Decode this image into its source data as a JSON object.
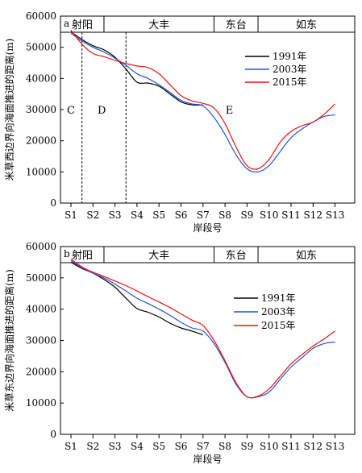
{
  "chart_data": [
    {
      "type": "line",
      "panel_label": "a",
      "ylabel": "米草西边界向海面推进的距离(m)",
      "xlabel": "岸段号",
      "ylim": [
        0,
        60000
      ],
      "yticks": [
        0,
        10000,
        20000,
        30000,
        40000,
        50000,
        60000
      ],
      "categories": [
        "S1",
        "S2",
        "S3",
        "S4",
        "S5",
        "S6",
        "S7",
        "S8",
        "S9",
        "S10",
        "S11",
        "S12",
        "S13"
      ],
      "regions": [
        {
          "label": "射阳",
          "from": 0,
          "to": 1.5
        },
        {
          "label": "大丰",
          "from": 1.5,
          "to": 6.5
        },
        {
          "label": "东台",
          "from": 6.5,
          "to": 8.5
        },
        {
          "label": "如东",
          "from": 8.5,
          "to": 12.5
        }
      ],
      "zone_dividers": [
        0.5,
        2.5
      ],
      "zone_labels": [
        {
          "label": "C",
          "x": 0,
          "y": 30000
        },
        {
          "label": "D",
          "x": 1.4,
          "y": 30000
        },
        {
          "label": "E",
          "x": 7.2,
          "y": 30000
        }
      ],
      "legend": {
        "position": "top-right"
      },
      "series": [
        {
          "name": "1991年",
          "color": "#000000",
          "x": [
            0,
            0.5,
            1,
            1.5,
            2,
            2.5,
            3,
            3.5,
            4,
            4.5,
            5,
            5.5,
            6
          ],
          "values": [
            55000,
            52500,
            50500,
            49200,
            46800,
            43000,
            38800,
            38500,
            37500,
            35000,
            32500,
            31500,
            31500
          ]
        },
        {
          "name": "2003年",
          "color": "#2255dd",
          "x": [
            0,
            0.5,
            1,
            1.5,
            2,
            2.5,
            3,
            3.5,
            4,
            4.5,
            5,
            5.5,
            6,
            6.5,
            7,
            7.5,
            8,
            8.5,
            9,
            9.5,
            10,
            10.5,
            11,
            11.5,
            12
          ],
          "values": [
            54500,
            52000,
            50000,
            48500,
            46500,
            44200,
            41500,
            40000,
            38000,
            35500,
            33000,
            31800,
            31200,
            27500,
            22000,
            15500,
            11000,
            10000,
            12000,
            16500,
            21000,
            23800,
            26000,
            27800,
            28300
          ]
        },
        {
          "name": "2015年",
          "color": "#ee1111",
          "x": [
            0,
            0.5,
            1,
            1.5,
            2,
            2.5,
            3,
            3.5,
            4,
            4.5,
            5,
            5.5,
            6,
            6.5,
            7,
            7.5,
            8,
            8.5,
            9,
            9.5,
            10,
            10.5,
            11,
            11.5,
            12
          ],
          "values": [
            55500,
            51000,
            48000,
            47000,
            45800,
            44800,
            44000,
            43500,
            41500,
            38000,
            34500,
            32800,
            32000,
            30500,
            25500,
            18000,
            12000,
            11000,
            14000,
            19500,
            23000,
            24800,
            26000,
            28500,
            31800
          ]
        }
      ]
    },
    {
      "type": "line",
      "panel_label": "b",
      "ylabel": "米草东边界向海面推进的距离(m)",
      "xlabel": "岸段号",
      "ylim": [
        0,
        60000
      ],
      "yticks": [
        0,
        10000,
        20000,
        30000,
        40000,
        50000,
        60000
      ],
      "categories": [
        "S1",
        "S2",
        "S3",
        "S4",
        "S5",
        "S6",
        "S7",
        "S8",
        "S9",
        "S10",
        "S11",
        "S12",
        "S13"
      ],
      "regions": [
        {
          "label": "射阳",
          "from": 0,
          "to": 1.5
        },
        {
          "label": "大丰",
          "from": 1.5,
          "to": 6.5
        },
        {
          "label": "东台",
          "from": 6.5,
          "to": 8.5
        },
        {
          "label": "如东",
          "from": 8.5,
          "to": 12.5
        }
      ],
      "zone_dividers": [],
      "zone_labels": [],
      "legend": {
        "position": "right"
      },
      "series": [
        {
          "name": "1991年",
          "color": "#000000",
          "x": [
            0,
            0.5,
            1,
            1.5,
            2,
            2.5,
            3,
            3.5,
            4,
            4.5,
            5,
            5.5,
            6
          ],
          "values": [
            55000,
            53000,
            51500,
            49500,
            47000,
            43500,
            40200,
            39000,
            37500,
            35500,
            34000,
            33000,
            31800
          ]
        },
        {
          "name": "2003年",
          "color": "#2255dd",
          "x": [
            0,
            0.5,
            1,
            1.5,
            2,
            2.5,
            3,
            3.5,
            4,
            4.5,
            5,
            5.5,
            6,
            6.5,
            7,
            7.5,
            8,
            8.5,
            9,
            9.5,
            10,
            10.5,
            11,
            11.5,
            12
          ],
          "values": [
            55500,
            53200,
            51500,
            50000,
            48000,
            45800,
            43500,
            41800,
            40000,
            38000,
            35800,
            34000,
            33000,
            29000,
            23000,
            16000,
            12000,
            12000,
            13500,
            17500,
            21500,
            24500,
            27500,
            29000,
            29500
          ]
        },
        {
          "name": "2015年",
          "color": "#ee1111",
          "x": [
            0,
            0.5,
            1,
            1.5,
            2,
            2.5,
            3,
            3.5,
            4,
            4.5,
            5,
            5.5,
            6,
            6.5,
            7,
            7.5,
            8,
            8.5,
            9,
            9.5,
            10,
            10.5,
            11,
            11.5,
            12
          ],
          "values": [
            56000,
            53500,
            51800,
            50500,
            49000,
            47500,
            45800,
            44000,
            42300,
            40500,
            38500,
            36500,
            34800,
            30000,
            23500,
            16500,
            12000,
            12200,
            14500,
            18500,
            22500,
            25500,
            28200,
            30500,
            33000
          ]
        }
      ]
    }
  ]
}
